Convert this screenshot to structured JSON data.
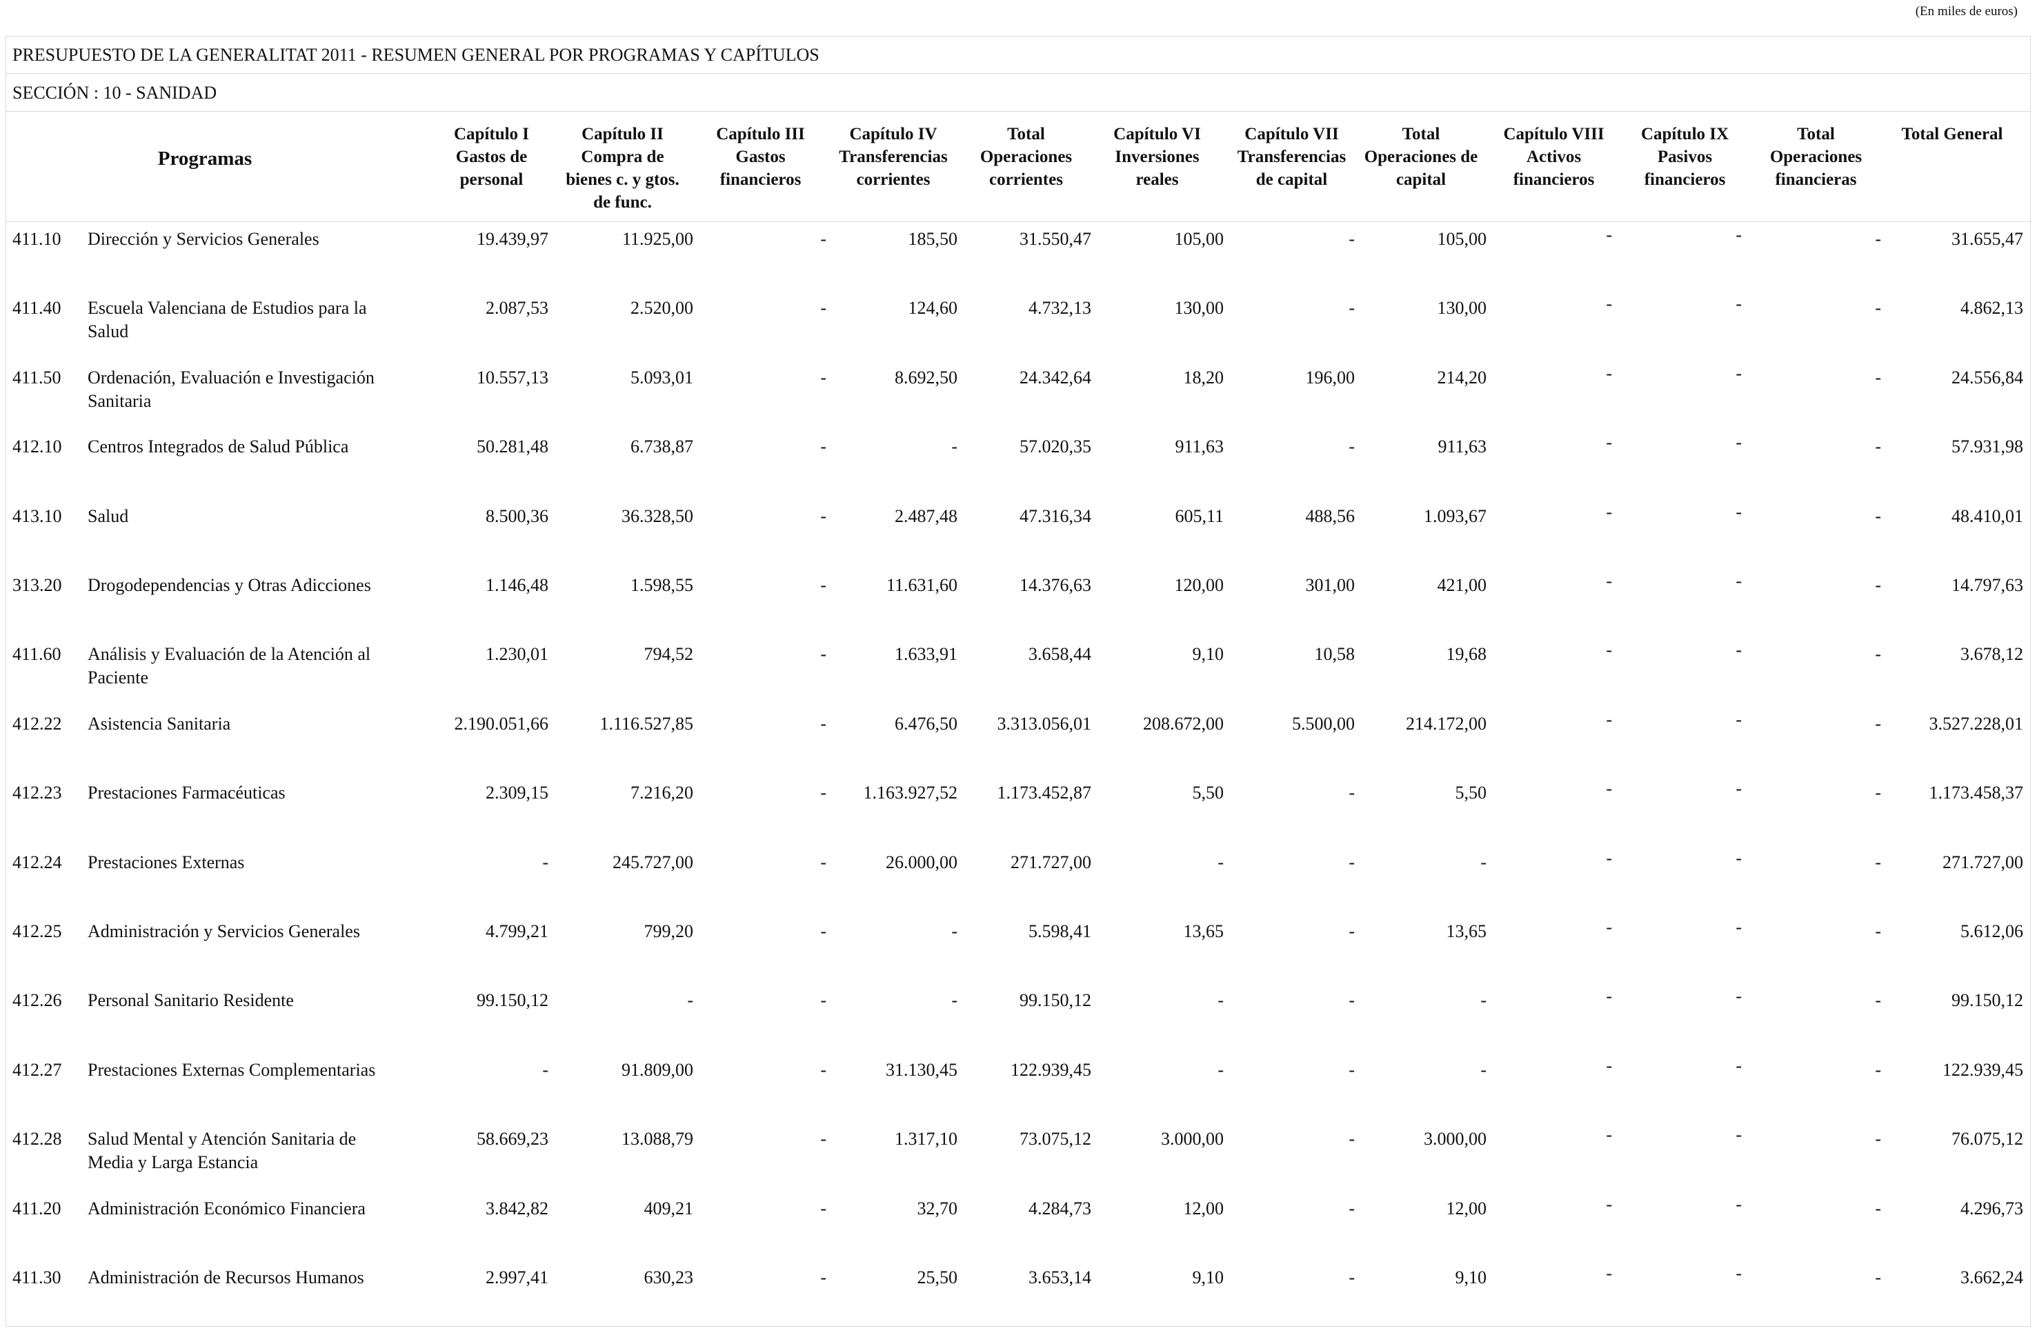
{
  "note": "(En miles de euros)",
  "title": "PRESUPUESTO DE LA GENERALITAT 2011 - RESUMEN GENERAL POR PROGRAMAS Y CAPÍTULOS",
  "section": "SECCIÓN : 10  -  SANIDAD",
  "columns": {
    "programas": "Programas",
    "c1": [
      "Capítulo I",
      "Gastos de",
      "personal"
    ],
    "c2": [
      "Capítulo II",
      "Compra de",
      "bienes c. y gtos.",
      "de func."
    ],
    "c3": [
      "Capítulo III",
      "Gastos",
      "financieros"
    ],
    "c4": [
      "Capítulo IV",
      "Transferencias",
      "corrientes"
    ],
    "toc": [
      "Total",
      "Operaciones",
      "corrientes"
    ],
    "c6": [
      "Capítulo VI",
      "Inversiones",
      "reales"
    ],
    "c7": [
      "Capítulo VII",
      "Transferencias",
      "de capital"
    ],
    "tocap": [
      "Total",
      "Operaciones de",
      "capital"
    ],
    "c8": [
      "Capítulo VIII",
      "Activos",
      "financieros"
    ],
    "c9": [
      "Capítulo IX",
      "Pasivos",
      "financieros"
    ],
    "tof": [
      "Total",
      "Operaciones",
      "financieras"
    ],
    "tg": "Total General"
  },
  "rows": [
    {
      "code": "411.10",
      "desc": "Dirección y Servicios Generales",
      "c1": "19.439,97",
      "c2": "11.925,00",
      "c3": "-",
      "c4": "185,50",
      "toc": "31.550,47",
      "c6": "105,00",
      "c7": "-",
      "tocap": "105,00",
      "c8": "-",
      "c9": "-",
      "tof": "-",
      "tg": "31.655,47"
    },
    {
      "code": "411.40",
      "desc": "Escuela Valenciana de Estudios para la Salud",
      "c1": "2.087,53",
      "c2": "2.520,00",
      "c3": "-",
      "c4": "124,60",
      "toc": "4.732,13",
      "c6": "130,00",
      "c7": "-",
      "tocap": "130,00",
      "c8": "-",
      "c9": "-",
      "tof": "-",
      "tg": "4.862,13"
    },
    {
      "code": "411.50",
      "desc": "Ordenación, Evaluación e Investigación Sanitaria",
      "c1": "10.557,13",
      "c2": "5.093,01",
      "c3": "-",
      "c4": "8.692,50",
      "toc": "24.342,64",
      "c6": "18,20",
      "c7": "196,00",
      "tocap": "214,20",
      "c8": "-",
      "c9": "-",
      "tof": "-",
      "tg": "24.556,84"
    },
    {
      "code": "412.10",
      "desc": "Centros Integrados de Salud Pública",
      "c1": "50.281,48",
      "c2": "6.738,87",
      "c3": "-",
      "c4": "-",
      "toc": "57.020,35",
      "c6": "911,63",
      "c7": "-",
      "tocap": "911,63",
      "c8": "-",
      "c9": "-",
      "tof": "-",
      "tg": "57.931,98"
    },
    {
      "code": "413.10",
      "desc": "Salud",
      "c1": "8.500,36",
      "c2": "36.328,50",
      "c3": "-",
      "c4": "2.487,48",
      "toc": "47.316,34",
      "c6": "605,11",
      "c7": "488,56",
      "tocap": "1.093,67",
      "c8": "-",
      "c9": "-",
      "tof": "-",
      "tg": "48.410,01"
    },
    {
      "code": "313.20",
      "desc": "Drogodependencias y Otras Adicciones",
      "c1": "1.146,48",
      "c2": "1.598,55",
      "c3": "-",
      "c4": "11.631,60",
      "toc": "14.376,63",
      "c6": "120,00",
      "c7": "301,00",
      "tocap": "421,00",
      "c8": "-",
      "c9": "-",
      "tof": "-",
      "tg": "14.797,63"
    },
    {
      "code": "411.60",
      "desc": "Análisis y Evaluación de la Atención al Paciente",
      "c1": "1.230,01",
      "c2": "794,52",
      "c3": "-",
      "c4": "1.633,91",
      "toc": "3.658,44",
      "c6": "9,10",
      "c7": "10,58",
      "tocap": "19,68",
      "c8": "-",
      "c9": "-",
      "tof": "-",
      "tg": "3.678,12"
    },
    {
      "code": "412.22",
      "desc": "Asistencia Sanitaria",
      "c1": "2.190.051,66",
      "c2": "1.116.527,85",
      "c3": "-",
      "c4": "6.476,50",
      "toc": "3.313.056,01",
      "c6": "208.672,00",
      "c7": "5.500,00",
      "tocap": "214.172,00",
      "c8": "-",
      "c9": "-",
      "tof": "-",
      "tg": "3.527.228,01"
    },
    {
      "code": "412.23",
      "desc": "Prestaciones Farmacéuticas",
      "c1": "2.309,15",
      "c2": "7.216,20",
      "c3": "-",
      "c4": "1.163.927,52",
      "toc": "1.173.452,87",
      "c6": "5,50",
      "c7": "-",
      "tocap": "5,50",
      "c8": "-",
      "c9": "-",
      "tof": "-",
      "tg": "1.173.458,37"
    },
    {
      "code": "412.24",
      "desc": "Prestaciones Externas",
      "c1": "-",
      "c2": "245.727,00",
      "c3": "-",
      "c4": "26.000,00",
      "toc": "271.727,00",
      "c6": "-",
      "c7": "-",
      "tocap": "-",
      "c8": "-",
      "c9": "-",
      "tof": "-",
      "tg": "271.727,00"
    },
    {
      "code": "412.25",
      "desc": "Administración y Servicios Generales",
      "c1": "4.799,21",
      "c2": "799,20",
      "c3": "-",
      "c4": "-",
      "toc": "5.598,41",
      "c6": "13,65",
      "c7": "-",
      "tocap": "13,65",
      "c8": "-",
      "c9": "-",
      "tof": "-",
      "tg": "5.612,06"
    },
    {
      "code": "412.26",
      "desc": "Personal Sanitario Residente",
      "c1": "99.150,12",
      "c2": "-",
      "c3": "-",
      "c4": "-",
      "toc": "99.150,12",
      "c6": "-",
      "c7": "-",
      "tocap": "-",
      "c8": "-",
      "c9": "-",
      "tof": "-",
      "tg": "99.150,12"
    },
    {
      "code": "412.27",
      "desc": "Prestaciones  Externas Complementarias",
      "c1": "-",
      "c2": "91.809,00",
      "c3": "-",
      "c4": "31.130,45",
      "toc": "122.939,45",
      "c6": "-",
      "c7": "-",
      "tocap": "-",
      "c8": "-",
      "c9": "-",
      "tof": "-",
      "tg": "122.939,45"
    },
    {
      "code": "412.28",
      "desc": "Salud Mental y Atención Sanitaria de Media y Larga Estancia",
      "c1": "58.669,23",
      "c2": "13.088,79",
      "c3": "-",
      "c4": "1.317,10",
      "toc": "73.075,12",
      "c6": "3.000,00",
      "c7": "-",
      "tocap": "3.000,00",
      "c8": "-",
      "c9": "-",
      "tof": "-",
      "tg": "76.075,12"
    },
    {
      "code": "411.20",
      "desc": "Administración Económico Financiera",
      "c1": "3.842,82",
      "c2": "409,21",
      "c3": "-",
      "c4": "32,70",
      "toc": "4.284,73",
      "c6": "12,00",
      "c7": "-",
      "tocap": "12,00",
      "c8": "-",
      "c9": "-",
      "tof": "-",
      "tg": "4.296,73"
    },
    {
      "code": "411.30",
      "desc": "Administración de Recursos Humanos",
      "c1": "2.997,41",
      "c2": "630,23",
      "c3": "-",
      "c4": "25,50",
      "toc": "3.653,14",
      "c6": "9,10",
      "c7": "-",
      "tocap": "9,10",
      "c8": "-",
      "c9": "-",
      "tof": "-",
      "tg": "3.662,24"
    }
  ]
}
